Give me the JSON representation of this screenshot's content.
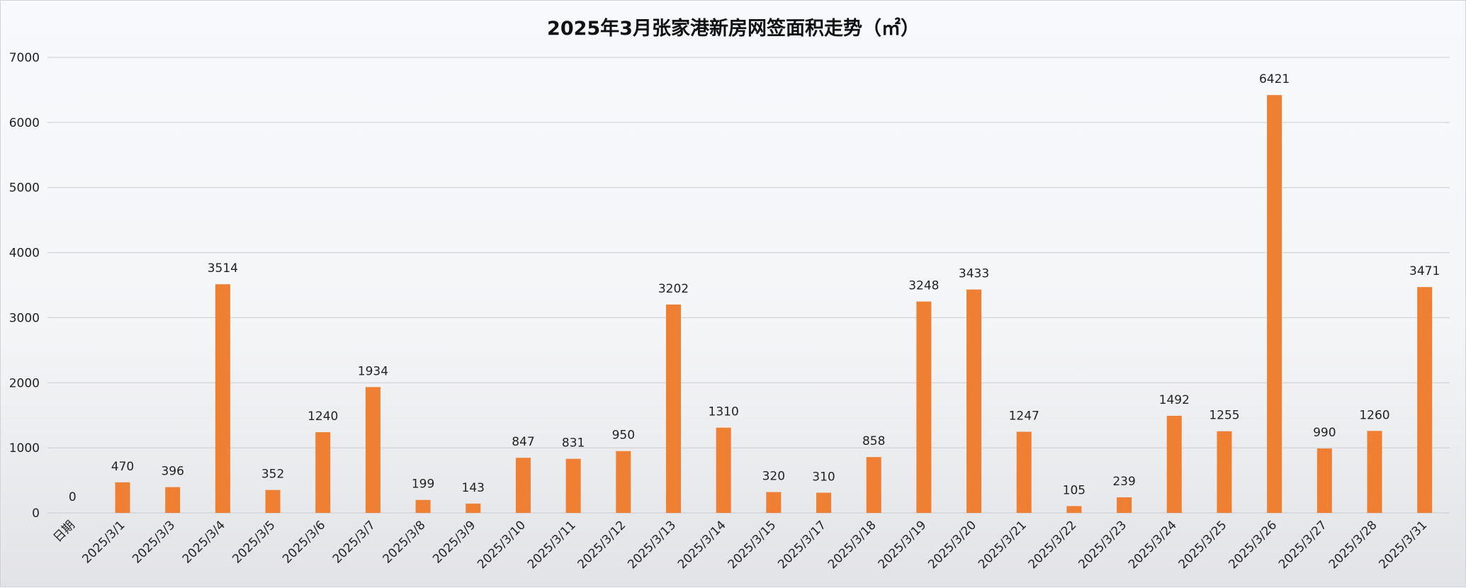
{
  "chart_data": {
    "type": "bar",
    "title": "2025年3月张家港新房网签面积走势（㎡）",
    "xlabel": "",
    "ylabel": "",
    "ylim": [
      0,
      7000
    ],
    "yticks": [
      0,
      1000,
      2000,
      3000,
      4000,
      5000,
      6000,
      7000
    ],
    "grid": true,
    "legend": "none",
    "bar_color": "#ef7f32",
    "categories": [
      "日期",
      "2025/3/1",
      "2025/3/3",
      "2025/3/4",
      "2025/3/5",
      "2025/3/6",
      "2025/3/7",
      "2025/3/8",
      "2025/3/9",
      "2025/3/10",
      "2025/3/11",
      "2025/3/12",
      "2025/3/13",
      "2025/3/14",
      "2025/3/15",
      "2025/3/17",
      "2025/3/18",
      "2025/3/19",
      "2025/3/20",
      "2025/3/21",
      "2025/3/22",
      "2025/3/23",
      "2025/3/24",
      "2025/3/25",
      "2025/3/26",
      "2025/3/27",
      "2025/3/28",
      "2025/3/31"
    ],
    "values": [
      0,
      470,
      396,
      3514,
      352,
      1240,
      1934,
      199,
      143,
      847,
      831,
      950,
      3202,
      1310,
      320,
      310,
      858,
      3248,
      3433,
      1247,
      105,
      239,
      1492,
      1255,
      6421,
      990,
      1260,
      3471
    ]
  }
}
